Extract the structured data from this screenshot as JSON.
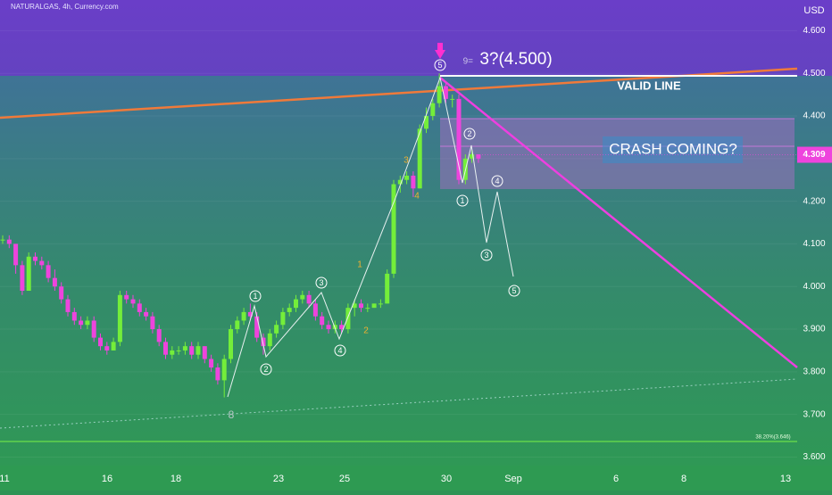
{
  "header": {
    "symbol": "NATURALGAS, 4h, Currency.com",
    "currency": "USD"
  },
  "chart_data": {
    "type": "candlestick",
    "up_color": "#74ee3a",
    "down_color": "#ee44dd",
    "open": [
      4.11,
      4.11,
      4.1,
      4.05,
      3.99,
      4.07,
      4.06,
      4.05,
      4.02,
      4.0,
      3.97,
      3.94,
      3.92,
      3.91,
      3.92,
      3.88,
      3.86,
      3.85,
      3.87,
      3.98,
      3.97,
      3.96,
      3.94,
      3.93,
      3.9,
      3.87,
      3.84,
      3.85,
      3.85,
      3.86,
      3.84,
      3.86,
      3.83,
      3.81,
      3.78,
      3.83,
      3.9,
      3.92,
      3.94,
      3.93,
      3.88,
      3.86,
      3.89,
      3.91,
      3.94,
      3.95,
      3.97,
      3.98,
      3.96,
      3.93,
      3.91,
      3.9,
      3.91,
      3.9,
      3.95,
      3.96,
      3.95,
      3.95,
      3.96,
      3.96,
      4.03,
      4.24,
      4.25,
      4.26,
      4.23,
      4.37,
      4.4,
      4.43,
      4.47,
      4.44,
      4.44,
      4.25,
      4.3,
      4.31
    ],
    "high": [
      4.12,
      4.12,
      4.1,
      4.06,
      4.08,
      4.08,
      4.07,
      4.06,
      4.04,
      4.01,
      3.98,
      3.95,
      3.93,
      3.93,
      3.93,
      3.89,
      3.87,
      3.88,
      3.99,
      3.99,
      3.98,
      3.97,
      3.95,
      3.94,
      3.91,
      3.88,
      3.86,
      3.86,
      3.87,
      3.87,
      3.87,
      3.86,
      3.84,
      3.82,
      3.84,
      3.91,
      3.93,
      3.95,
      3.96,
      3.94,
      3.89,
      3.9,
      3.92,
      3.95,
      3.96,
      3.98,
      3.99,
      3.99,
      3.97,
      3.94,
      3.92,
      3.92,
      3.92,
      3.96,
      3.97,
      3.97,
      3.96,
      3.96,
      3.97,
      4.04,
      4.25,
      4.26,
      4.27,
      4.27,
      4.38,
      4.42,
      4.44,
      4.5,
      4.48,
      4.45,
      4.45,
      4.31,
      4.32,
      4.31
    ],
    "low": [
      4.1,
      4.09,
      4.03,
      3.98,
      3.99,
      4.05,
      4.04,
      4.01,
      3.99,
      3.96,
      3.93,
      3.91,
      3.9,
      3.9,
      3.87,
      3.85,
      3.84,
      3.85,
      3.86,
      3.96,
      3.95,
      3.93,
      3.92,
      3.89,
      3.86,
      3.83,
      3.83,
      3.84,
      3.84,
      3.83,
      3.83,
      3.82,
      3.8,
      3.77,
      3.74,
      3.82,
      3.89,
      3.91,
      3.92,
      3.87,
      3.84,
      3.85,
      3.88,
      3.9,
      3.93,
      3.94,
      3.96,
      3.95,
      3.92,
      3.9,
      3.89,
      3.89,
      3.89,
      3.89,
      3.93,
      3.94,
      3.94,
      3.95,
      3.95,
      3.96,
      4.02,
      4.22,
      4.24,
      4.21,
      4.23,
      4.36,
      4.39,
      4.42,
      4.43,
      4.42,
      4.24,
      4.24,
      4.29,
      4.29
    ],
    "close": [
      4.11,
      4.1,
      4.05,
      3.99,
      4.07,
      4.06,
      4.05,
      4.02,
      4.0,
      3.97,
      3.94,
      3.92,
      3.91,
      3.92,
      3.88,
      3.86,
      3.85,
      3.87,
      3.98,
      3.97,
      3.96,
      3.94,
      3.93,
      3.9,
      3.87,
      3.84,
      3.85,
      3.85,
      3.86,
      3.84,
      3.86,
      3.83,
      3.81,
      3.78,
      3.83,
      3.9,
      3.92,
      3.94,
      3.93,
      3.88,
      3.86,
      3.89,
      3.91,
      3.94,
      3.95,
      3.97,
      3.98,
      3.96,
      3.93,
      3.91,
      3.9,
      3.91,
      3.9,
      3.95,
      3.96,
      3.95,
      3.95,
      3.96,
      3.96,
      4.03,
      4.24,
      4.25,
      4.26,
      4.23,
      4.37,
      4.4,
      4.43,
      4.47,
      4.44,
      4.44,
      4.25,
      4.3,
      4.31,
      4.3
    ],
    "x_labels": [
      "11",
      "16",
      "18",
      "23",
      "25",
      "30",
      "Sep",
      "6",
      "8",
      "13"
    ],
    "ylim": [
      3.58,
      4.672
    ],
    "yticks": [
      {
        "value": 3.6,
        "label": "3.600"
      },
      {
        "value": 3.7,
        "label": "3.700"
      },
      {
        "value": 3.8,
        "label": "3.800"
      },
      {
        "value": 3.9,
        "label": "3.900"
      },
      {
        "value": 4.0,
        "label": "4.000"
      },
      {
        "value": 4.1,
        "label": "4.100"
      },
      {
        "value": 4.2,
        "label": "4.200"
      },
      {
        "value": 4.3,
        "label": "4.300"
      },
      {
        "value": 4.4,
        "label": "4.400"
      },
      {
        "value": 4.5,
        "label": "4.500"
      },
      {
        "value": 4.6,
        "label": "4.600"
      }
    ],
    "last_price": 4.309,
    "annotations": {
      "target_prefix": "9=",
      "target": "3?(4.500)",
      "valid_line": "VALID LINE",
      "crash": "CRASH COMING?",
      "fib": "38.20%(3.646)"
    },
    "wave_labels": [
      "1",
      "2",
      "3",
      "4",
      "5",
      "1",
      "2",
      "3",
      "4",
      "5"
    ],
    "sub_wave_labels": [
      "1",
      "2",
      "3",
      "4"
    ],
    "count_label": "8"
  }
}
